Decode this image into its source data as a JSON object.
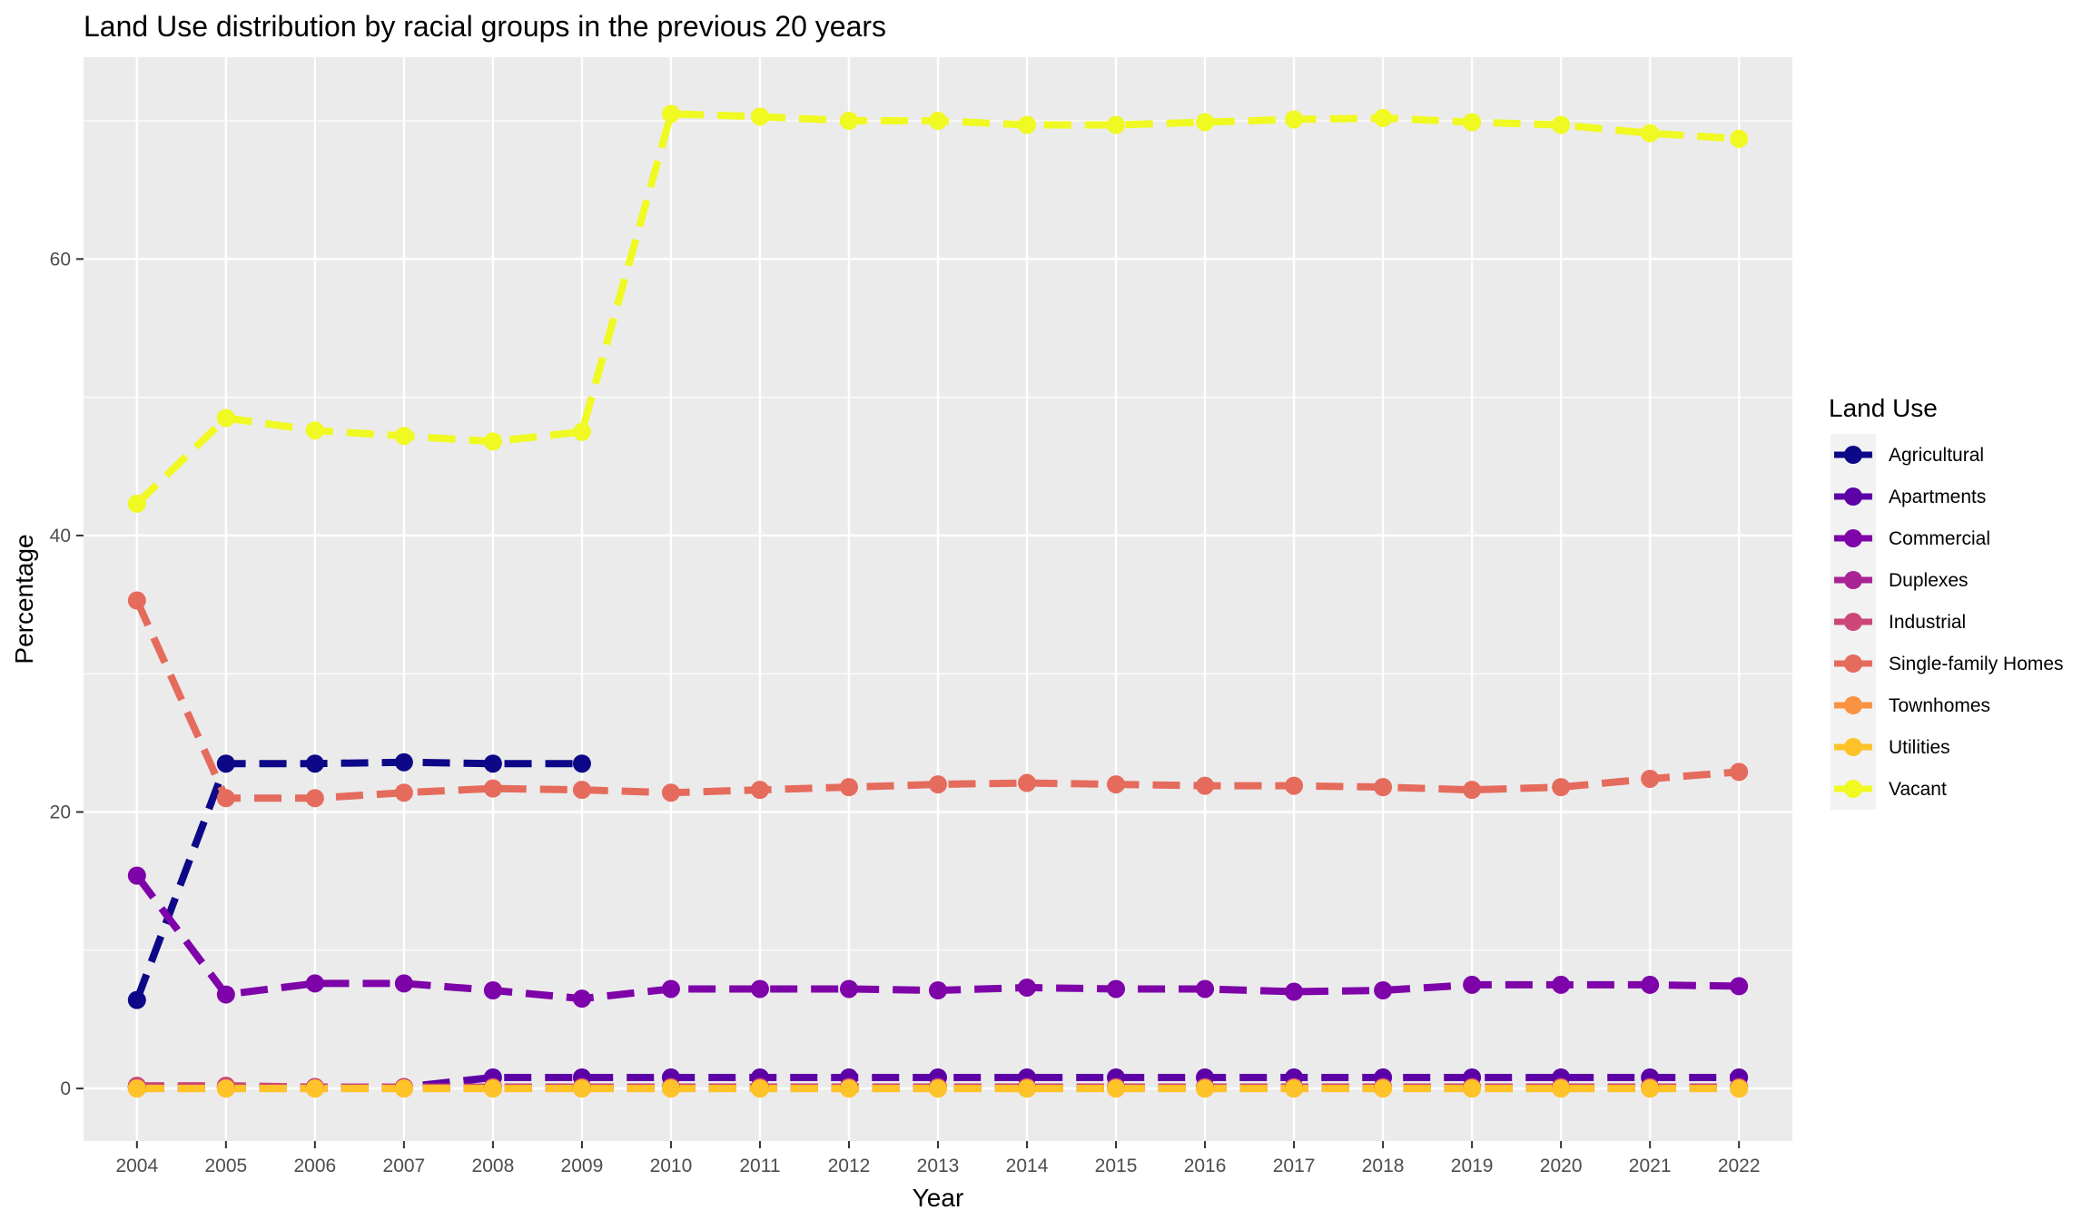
{
  "chart_data": {
    "type": "line",
    "title": "Land Use distribution by racial groups in the previous 20 years",
    "xlabel": "Year",
    "ylabel": "Percentage",
    "x": [
      "2004",
      "2005",
      "2006",
      "2007",
      "2008",
      "2009",
      "2010",
      "2011",
      "2012",
      "2013",
      "2014",
      "2015",
      "2016",
      "2017",
      "2018",
      "2019",
      "2020",
      "2021",
      "2022"
    ],
    "ylim": [
      -3.8,
      74.6
    ],
    "yticks": [
      0,
      20,
      40,
      60
    ],
    "ytick_labels": [
      "0",
      "20",
      "40",
      "60"
    ],
    "grid": true,
    "line_style": "dashed",
    "legend_title": "Land Use",
    "legend_position": "right",
    "series": [
      {
        "name": "Agricultural",
        "color": "#0d0887",
        "values": [
          6.4,
          23.5,
          23.5,
          23.6,
          23.5,
          23.5,
          null,
          null,
          null,
          null,
          null,
          null,
          null,
          null,
          null,
          null,
          null,
          null,
          null
        ]
      },
      {
        "name": "Apartments",
        "color": "#5c01a6",
        "values": [
          0.1,
          0.1,
          0.1,
          0.1,
          0.8,
          0.8,
          0.8,
          0.8,
          0.8,
          0.8,
          0.8,
          0.8,
          0.8,
          0.8,
          0.8,
          0.8,
          0.8,
          0.8,
          0.8
        ]
      },
      {
        "name": "Commercial",
        "color": "#7e03a8",
        "values": [
          15.4,
          6.8,
          7.6,
          7.6,
          7.1,
          6.5,
          7.2,
          7.2,
          7.2,
          7.1,
          7.3,
          7.2,
          7.2,
          7.0,
          7.1,
          7.5,
          7.5,
          7.5,
          7.4
        ]
      },
      {
        "name": "Duplexes",
        "color": "#a92395",
        "values": [
          0.1,
          0.1,
          0.1,
          0.1,
          0.1,
          0.1,
          0.1,
          0.1,
          0.1,
          0.1,
          0.1,
          0.1,
          0.1,
          0.1,
          0.1,
          0.1,
          0.1,
          0.1,
          0.1
        ]
      },
      {
        "name": "Industrial",
        "color": "#cc4778",
        "values": [
          0.2,
          0.2,
          0.1,
          0.1,
          0.1,
          0.1,
          0.1,
          0.1,
          0.1,
          0.1,
          0.1,
          0.1,
          0.1,
          0.1,
          0.1,
          0.1,
          0.1,
          0.1,
          0.1
        ]
      },
      {
        "name": "Single-family Homes",
        "color": "#e56b5d",
        "values": [
          35.3,
          21.0,
          21.0,
          21.4,
          21.7,
          21.6,
          21.4,
          21.6,
          21.8,
          22.0,
          22.1,
          22.0,
          21.9,
          21.9,
          21.8,
          21.6,
          21.8,
          22.4,
          22.9
        ]
      },
      {
        "name": "Townhomes",
        "color": "#f89441",
        "values": [
          0.0,
          0.0,
          0.0,
          0.0,
          0.0,
          0.0,
          0.0,
          0.0,
          0.0,
          0.0,
          0.0,
          0.0,
          0.0,
          0.0,
          0.0,
          0.0,
          0.0,
          0.0,
          0.0
        ]
      },
      {
        "name": "Utilities",
        "color": "#fdc328",
        "values": [
          0.0,
          0.0,
          0.0,
          0.0,
          0.0,
          0.0,
          0.0,
          0.0,
          0.0,
          0.0,
          0.0,
          0.0,
          0.0,
          0.0,
          0.0,
          0.0,
          0.0,
          0.0,
          0.0
        ]
      },
      {
        "name": "Vacant",
        "color": "#f0f921",
        "values": [
          42.3,
          48.5,
          47.6,
          47.2,
          46.8,
          47.5,
          70.5,
          70.3,
          70.0,
          70.0,
          69.7,
          69.7,
          69.9,
          70.1,
          70.2,
          69.9,
          69.7,
          69.1,
          68.7
        ]
      }
    ]
  }
}
